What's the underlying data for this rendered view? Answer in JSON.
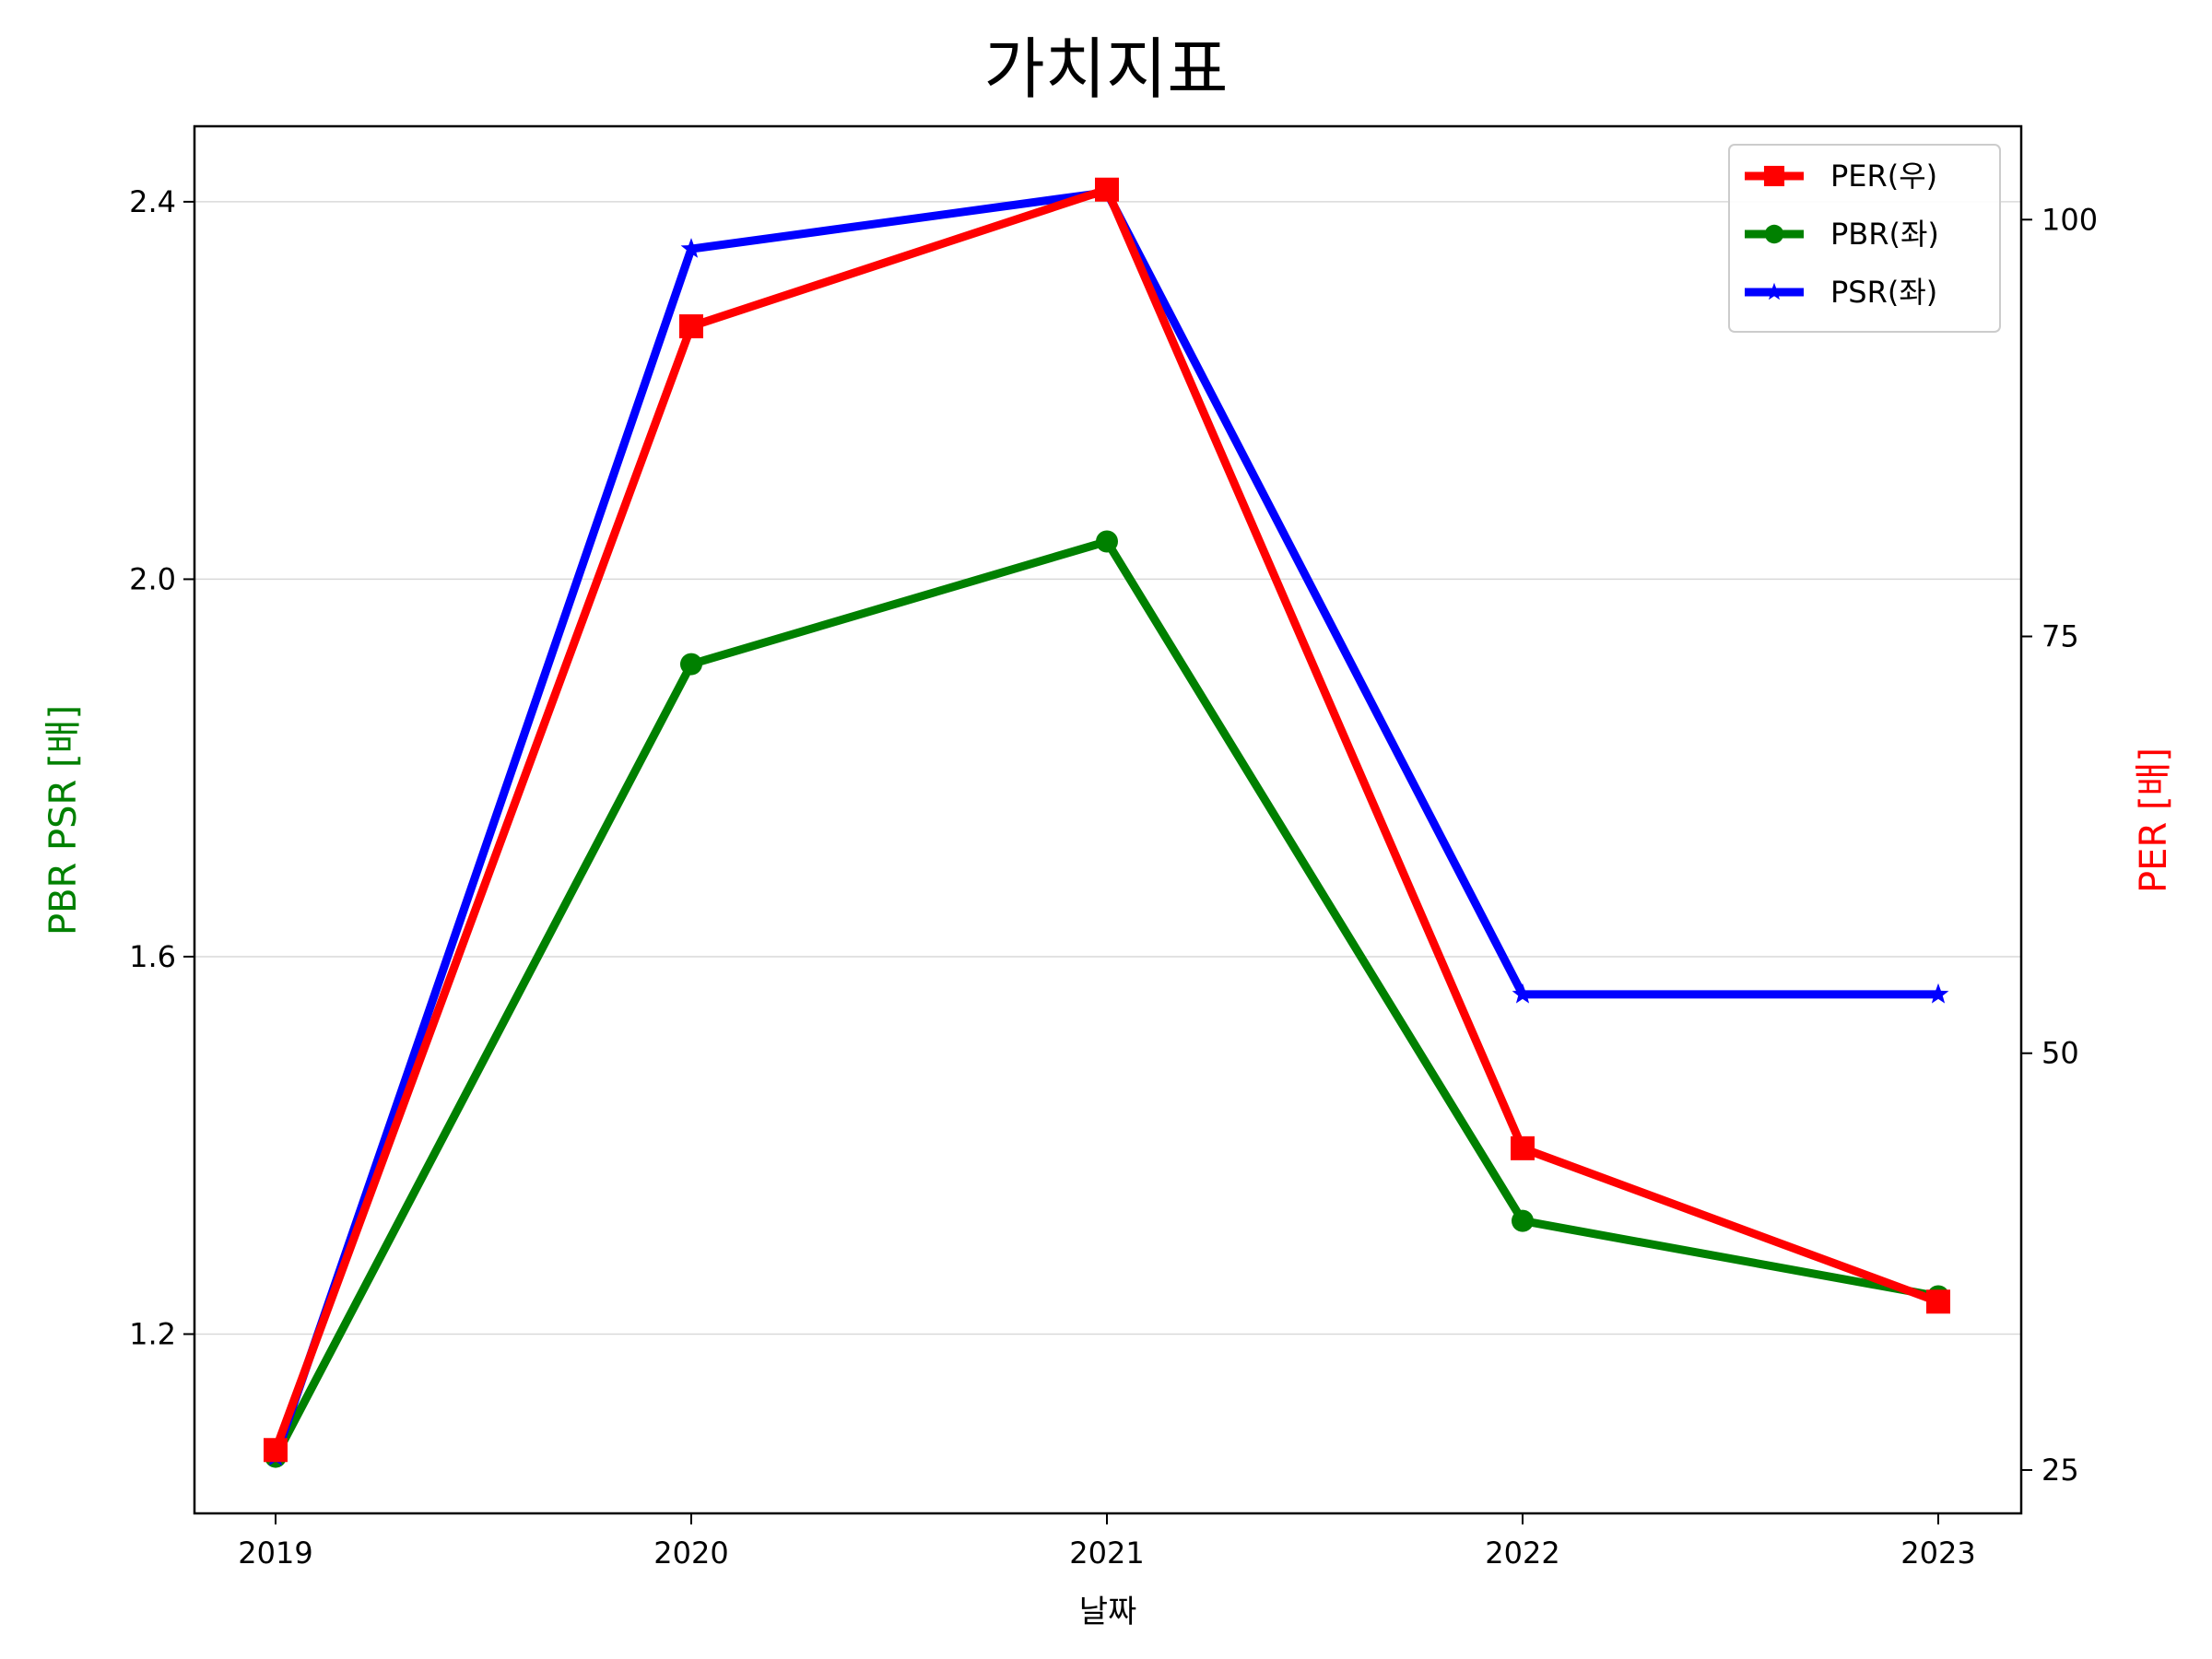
{
  "chart_data": {
    "type": "line",
    "title": "가치지표",
    "xlabel": "날짜",
    "ylabel_left": "PBR PSR [배]",
    "ylabel_right": "PER [배]",
    "categories": [
      "2019",
      "2020",
      "2021",
      "2022",
      "2023"
    ],
    "ylim_left": [
      1.01,
      2.48
    ],
    "ylim_right": [
      22.4,
      105.6
    ],
    "yticks_left": [
      "1.2",
      "1.6",
      "2.0",
      "2.4"
    ],
    "yticks_right": [
      "25",
      "50",
      "75",
      "100"
    ],
    "grid": "horizontal (left axis)",
    "legend_position": "top-right",
    "series": [
      {
        "name": "PER(우)",
        "axis": "right",
        "marker": "square",
        "color": "#ff0000",
        "values": [
          26.2,
          93.6,
          101.8,
          44.3,
          35.1
        ]
      },
      {
        "name": "PBR(좌)",
        "axis": "left",
        "marker": "circle",
        "color": "#008000",
        "values": [
          1.07,
          1.91,
          2.04,
          1.32,
          1.24
        ]
      },
      {
        "name": "PSR(좌)",
        "axis": "left",
        "marker": "star",
        "color": "#0000ff",
        "values": [
          1.07,
          2.35,
          2.41,
          1.56,
          1.56
        ]
      }
    ],
    "colors": {
      "left_label": "#008000",
      "right_label": "#ff0000",
      "grid": "#d9d9d9"
    }
  }
}
